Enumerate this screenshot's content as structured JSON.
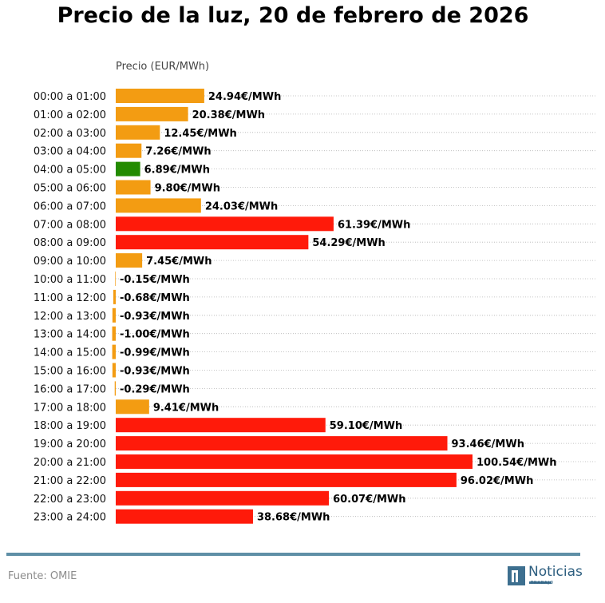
{
  "chart_data": {
    "type": "bar",
    "orientation": "horizontal",
    "title": "Precio de la luz, 20 de febrero de 2026",
    "xlabel": "Precio (EUR/MWh)",
    "ylabel": "",
    "xlim": [
      0,
      100.54
    ],
    "grid": "horizontal dotted",
    "categories": [
      "00:00 a 01:00",
      "01:00 a 02:00",
      "02:00 a 03:00",
      "03:00 a 04:00",
      "04:00 a 05:00",
      "05:00 a 06:00",
      "06:00 a 07:00",
      "07:00 a 08:00",
      "08:00 a 09:00",
      "09:00 a 10:00",
      "10:00 a 11:00",
      "11:00 a 12:00",
      "12:00 a 13:00",
      "13:00 a 14:00",
      "14:00 a 15:00",
      "15:00 a 16:00",
      "16:00 a 17:00",
      "17:00 a 18:00",
      "18:00 a 19:00",
      "19:00 a 20:00",
      "20:00 a 21:00",
      "21:00 a 22:00",
      "22:00 a 23:00",
      "23:00 a 24:00"
    ],
    "values": [
      24.94,
      20.38,
      12.45,
      7.26,
      6.89,
      9.8,
      24.03,
      61.39,
      54.29,
      7.45,
      -0.15,
      -0.68,
      -0.93,
      -1.0,
      -0.99,
      -0.93,
      -0.29,
      9.41,
      59.1,
      93.46,
      100.54,
      96.02,
      60.07,
      38.68
    ],
    "labels": [
      "24.94€/MWh",
      "20.38€/MWh",
      "12.45€/MWh",
      "7.26€/MWh",
      "6.89€/MWh",
      "9.80€/MWh",
      "24.03€/MWh",
      "61.39€/MWh",
      "54.29€/MWh",
      "7.45€/MWh",
      "-0.15€/MWh",
      "-0.68€/MWh",
      "-0.93€/MWh",
      "-1.00€/MWh",
      "-0.99€/MWh",
      "-0.93€/MWh",
      "-0.29€/MWh",
      "9.41€/MWh",
      "59.10€/MWh",
      "93.46€/MWh",
      "100.54€/MWh",
      "96.02€/MWh",
      "60.07€/MWh",
      "38.68€/MWh"
    ],
    "colors": [
      "#f39c12",
      "#f39c12",
      "#f39c12",
      "#f39c12",
      "#238b00",
      "#f39c12",
      "#f39c12",
      "#ff1a0a",
      "#ff1a0a",
      "#f39c12",
      "#f39c12",
      "#f39c12",
      "#f39c12",
      "#f39c12",
      "#f39c12",
      "#f39c12",
      "#f39c12",
      "#f39c12",
      "#ff1a0a",
      "#ff1a0a",
      "#ff1a0a",
      "#ff1a0a",
      "#ff1a0a",
      "#ff1a0a"
    ]
  },
  "footer": {
    "source": "Fuente: OMIE",
    "logo_text": "Noticias",
    "logo_subtext": "TRABAJO",
    "line_color": "#5f8fa6"
  }
}
